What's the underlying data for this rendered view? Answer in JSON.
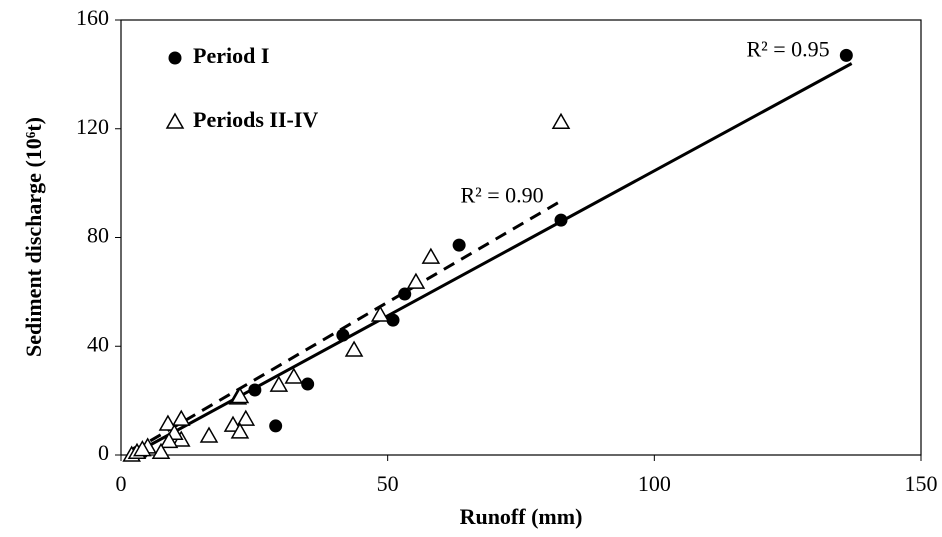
{
  "chart_data": {
    "type": "scatter",
    "x_label": "Runoff (mm)",
    "y_label": "Sediment discharge (10⁶t)",
    "xlim": [
      0,
      150
    ],
    "xticks": [
      0,
      50,
      100,
      150
    ],
    "ylim": [
      0,
      160
    ],
    "yticks": [
      0,
      40,
      80,
      120,
      160
    ],
    "legend": "upper left",
    "series": [
      {
        "name": "Period I",
        "color": "#000000",
        "marker": "circle",
        "x": [
          136,
          82.5,
          63.4,
          53.2,
          51,
          41.6,
          35,
          25.1,
          29,
          3,
          4
        ],
        "y": [
          147,
          86.4,
          77.2,
          59.2,
          49.6,
          44.1,
          26.1,
          23.9,
          10.7,
          1,
          1
        ],
        "trendline": {
          "x": [
            2,
            137
          ],
          "y": [
            0,
            144
          ],
          "label": "R² = 0.95",
          "dashed": false
        }
      },
      {
        "name": "Periods II-IV",
        "color": "#000000",
        "marker": "triangle",
        "x": [
          82.5,
          58.1,
          55.3,
          48.6,
          43.7,
          32.4,
          29.6,
          21.9,
          22.3,
          23.4,
          21,
          22.3,
          16.5,
          11.3,
          8.8,
          11.3,
          10,
          9,
          7.5,
          5,
          2,
          3,
          4
        ],
        "y": [
          122.4,
          72.8,
          63.6,
          51.5,
          38.6,
          28.7,
          25.7,
          21,
          21.5,
          13.2,
          11,
          8.5,
          7,
          13.2,
          11.4,
          5.5,
          8,
          5,
          1,
          3,
          0,
          1,
          2
        ],
        "trendline": {
          "x": [
            2.25,
            83
          ],
          "y": [
            1.5,
            94
          ],
          "label": "R² = 0.90",
          "dashed": true
        }
      }
    ]
  }
}
